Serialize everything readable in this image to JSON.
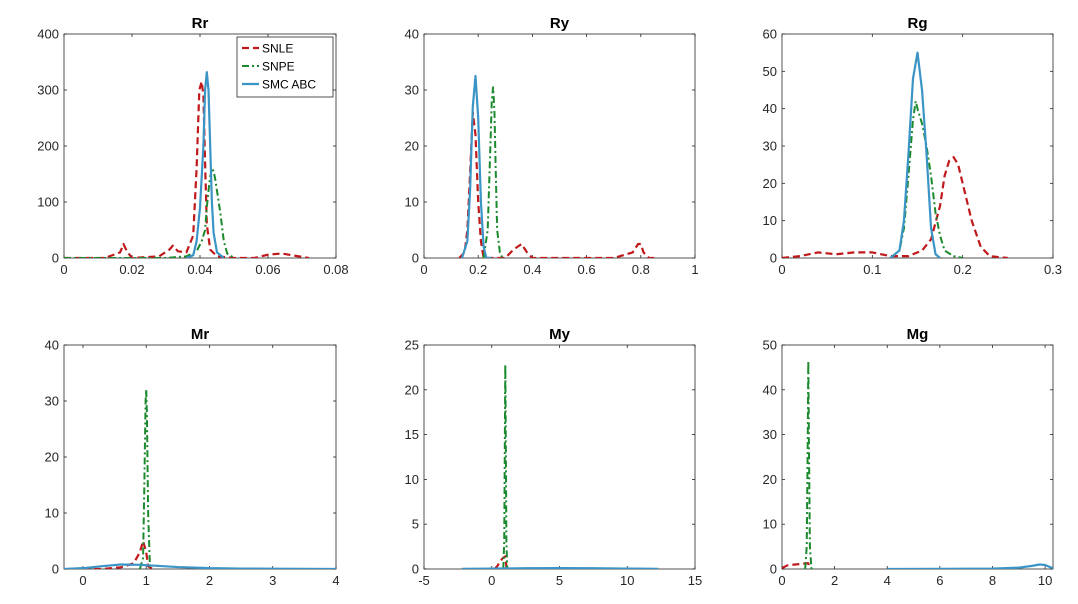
{
  "colors": {
    "SNLE": "#c0181b",
    "SNPE": "#1b8a2e",
    "SMC ABC": "#3a95c6",
    "axis": "#262626",
    "background": "#ffffff"
  },
  "legend": {
    "placement": "top-right",
    "entries": [
      {
        "name": "SNLE",
        "style": "dashed"
      },
      {
        "name": "SNPE",
        "style": "dash-dot"
      },
      {
        "name": "SMC ABC",
        "style": "solid"
      }
    ]
  },
  "chart_data": [
    {
      "type": "line",
      "title": "Rr",
      "xlim": [
        0,
        0.08
      ],
      "ylim": [
        0,
        400
      ],
      "xticks": [
        0,
        0.02,
        0.04,
        0.06,
        0.08
      ],
      "xtick_labels": [
        "0",
        "0.02",
        "0.04",
        "0.06",
        "0.08"
      ],
      "yticks": [
        0,
        100,
        200,
        300,
        400
      ],
      "ytick_labels": [
        "0",
        "100",
        "200",
        "300",
        "400"
      ],
      "legend": true,
      "series": [
        {
          "name": "SNLE",
          "x": [
            0,
            0.012,
            0.0165,
            0.0175,
            0.0185,
            0.02,
            0.028,
            0.031,
            0.032,
            0.0335,
            0.036,
            0.038,
            0.039,
            0.0398,
            0.0405,
            0.041,
            0.0415,
            0.042,
            0.043,
            0.045,
            0.05,
            0.056,
            0.06,
            0.064,
            0.068,
            0.072
          ],
          "y": [
            0,
            0,
            10,
            25,
            12,
            0,
            3,
            15,
            22,
            12,
            10,
            40,
            160,
            300,
            315,
            290,
            170,
            60,
            15,
            3,
            0,
            0,
            6,
            8,
            4,
            0
          ]
        },
        {
          "name": "SNPE",
          "x": [
            0,
            0.03,
            0.036,
            0.039,
            0.0405,
            0.0415,
            0.042,
            0.0425,
            0.043,
            0.0435,
            0.044,
            0.0445,
            0.045,
            0.046,
            0.047,
            0.048,
            0.05
          ],
          "y": [
            0,
            0,
            3,
            12,
            30,
            50,
            90,
            120,
            145,
            160,
            155,
            140,
            120,
            80,
            30,
            8,
            0
          ]
        },
        {
          "name": "SMC ABC",
          "x": [
            0.036,
            0.038,
            0.039,
            0.04,
            0.041,
            0.0415,
            0.042,
            0.0425,
            0.043,
            0.0435,
            0.044,
            0.045,
            0.047
          ],
          "y": [
            0,
            5,
            30,
            90,
            200,
            300,
            332,
            300,
            200,
            100,
            45,
            10,
            0
          ]
        }
      ]
    },
    {
      "type": "line",
      "title": "Ry",
      "xlim": [
        0,
        1
      ],
      "ylim": [
        0,
        40
      ],
      "xticks": [
        0,
        0.2,
        0.4,
        0.6,
        0.8,
        1
      ],
      "xtick_labels": [
        "0",
        "0.2",
        "0.4",
        "0.6",
        "0.8",
        "1"
      ],
      "yticks": [
        0,
        10,
        20,
        30,
        40
      ],
      "ytick_labels": [
        "0",
        "10",
        "20",
        "30",
        "40"
      ],
      "legend": false,
      "series": [
        {
          "name": "SNLE",
          "x": [
            0.13,
            0.15,
            0.16,
            0.17,
            0.18,
            0.19,
            0.2,
            0.21,
            0.22,
            0.25,
            0.3,
            0.33,
            0.36,
            0.38,
            0.4,
            0.5,
            0.6,
            0.7,
            0.77,
            0.79,
            0.8,
            0.81,
            0.83,
            0.86
          ],
          "y": [
            0,
            1,
            5,
            15,
            26,
            22,
            10,
            3,
            0,
            0,
            0,
            1.5,
            2.5,
            1,
            0,
            0,
            0,
            0,
            1,
            2.5,
            2.5,
            1,
            0,
            0
          ]
        },
        {
          "name": "SNPE",
          "x": [
            0.22,
            0.235,
            0.245,
            0.25,
            0.255,
            0.26,
            0.265,
            0.27,
            0.28,
            0.29
          ],
          "y": [
            0,
            5,
            20,
            28,
            30.5,
            26,
            15,
            5,
            1,
            0
          ]
        },
        {
          "name": "SMC ABC",
          "x": [
            0.14,
            0.16,
            0.17,
            0.18,
            0.19,
            0.2,
            0.21,
            0.22,
            0.23,
            0.25
          ],
          "y": [
            0,
            3,
            12,
            27,
            32.5,
            25,
            10,
            2,
            0,
            0
          ]
        }
      ]
    },
    {
      "type": "line",
      "title": "Rg",
      "xlim": [
        0,
        0.3
      ],
      "ylim": [
        0,
        60
      ],
      "xticks": [
        0,
        0.1,
        0.2,
        0.3
      ],
      "xtick_labels": [
        "0",
        "0.1",
        "0.2",
        "0.3"
      ],
      "yticks": [
        0,
        10,
        20,
        30,
        40,
        50,
        60
      ],
      "ytick_labels": [
        "0",
        "10",
        "20",
        "30",
        "40",
        "50",
        "60"
      ],
      "legend": false,
      "series": [
        {
          "name": "SNLE",
          "x": [
            0,
            0.02,
            0.04,
            0.06,
            0.08,
            0.1,
            0.12,
            0.14,
            0.155,
            0.165,
            0.175,
            0.18,
            0.185,
            0.19,
            0.195,
            0.2,
            0.21,
            0.22,
            0.23,
            0.25
          ],
          "y": [
            0,
            0.5,
            1.5,
            1,
            1.5,
            1.5,
            0.5,
            0.5,
            2,
            5,
            14,
            22,
            26,
            27,
            25,
            20,
            10,
            3,
            0.5,
            0
          ]
        },
        {
          "name": "SNPE",
          "x": [
            0.12,
            0.13,
            0.135,
            0.14,
            0.145,
            0.148,
            0.15,
            0.155,
            0.16,
            0.165,
            0.17,
            0.175,
            0.18,
            0.19,
            0.2
          ],
          "y": [
            0,
            2,
            8,
            22,
            37,
            42,
            40,
            36,
            30,
            22,
            12,
            6,
            2,
            0.5,
            0
          ]
        },
        {
          "name": "SMC ABC",
          "x": [
            0.12,
            0.13,
            0.135,
            0.14,
            0.145,
            0.15,
            0.155,
            0.16,
            0.165,
            0.17,
            0.175
          ],
          "y": [
            0,
            2,
            10,
            28,
            48,
            55,
            45,
            28,
            8,
            1,
            0
          ]
        }
      ]
    },
    {
      "type": "line",
      "title": "Mr",
      "xlim": [
        -0.3,
        4
      ],
      "ylim": [
        0,
        40
      ],
      "xticks": [
        0,
        1,
        2,
        3,
        4
      ],
      "xtick_labels": [
        "0",
        "1",
        "2",
        "3",
        "4"
      ],
      "yticks": [
        0,
        10,
        20,
        30,
        40
      ],
      "ytick_labels": [
        "0",
        "10",
        "20",
        "30",
        "40"
      ],
      "legend": false,
      "series": [
        {
          "name": "SNLE",
          "x": [
            0,
            0.3,
            0.6,
            0.8,
            0.9,
            0.95,
            1.0,
            1.03,
            1.1
          ],
          "y": [
            0,
            0,
            0.3,
            1,
            3,
            5,
            3,
            0.5,
            0
          ]
        },
        {
          "name": "SNPE",
          "x": [
            0.9,
            0.95,
            0.97,
            0.99,
            1.0,
            1.01,
            1.03,
            1.06
          ],
          "y": [
            0,
            2,
            15,
            30,
            32,
            28,
            10,
            0
          ]
        },
        {
          "name": "SMC ABC",
          "x": [
            -0.3,
            0.0,
            0.3,
            0.6,
            0.9,
            1.2,
            1.5,
            2.0,
            2.5,
            3.0,
            3.5,
            4.0
          ],
          "y": [
            0,
            0.15,
            0.5,
            0.8,
            0.75,
            0.55,
            0.35,
            0.15,
            0.08,
            0.04,
            0.02,
            0
          ]
        }
      ]
    },
    {
      "type": "line",
      "title": "My",
      "xlim": [
        -5,
        15
      ],
      "ylim": [
        0,
        25
      ],
      "xticks": [
        -5,
        0,
        5,
        10,
        15
      ],
      "xtick_labels": [
        "-5",
        "0",
        "5",
        "10",
        "15"
      ],
      "yticks": [
        0,
        5,
        10,
        15,
        20,
        25
      ],
      "ytick_labels": [
        "0",
        "5",
        "10",
        "15",
        "20",
        "25"
      ],
      "legend": false,
      "series": [
        {
          "name": "SNLE",
          "x": [
            0.2,
            0.4,
            0.6,
            0.8,
            1.0,
            1.1
          ],
          "y": [
            0,
            0.3,
            0.8,
            1.2,
            1.4,
            0
          ]
        },
        {
          "name": "SNPE",
          "x": [
            0.85,
            0.92,
            0.97,
            1.0,
            1.03,
            1.08,
            1.15
          ],
          "y": [
            0,
            3,
            15,
            22.8,
            16,
            3,
            0
          ]
        },
        {
          "name": "SMC ABC",
          "x": [
            -2.2,
            0,
            2.5,
            5,
            7.5,
            10,
            12.3
          ],
          "y": [
            0.02,
            0.05,
            0.08,
            0.1,
            0.08,
            0.05,
            0.02
          ]
        }
      ]
    },
    {
      "type": "line",
      "title": "Mg",
      "xlim": [
        0,
        10.3
      ],
      "ylim": [
        0,
        50
      ],
      "xticks": [
        0,
        2,
        4,
        6,
        8,
        10
      ],
      "xtick_labels": [
        "0",
        "2",
        "4",
        "6",
        "8",
        "10"
      ],
      "yticks": [
        0,
        10,
        20,
        30,
        40,
        50
      ],
      "ytick_labels": [
        "0",
        "10",
        "20",
        "30",
        "40",
        "50"
      ],
      "legend": false,
      "series": [
        {
          "name": "SNLE",
          "x": [
            0,
            0.2,
            0.5,
            0.8,
            1.0,
            1.05
          ],
          "y": [
            0.2,
            0.8,
            1.0,
            1.2,
            1.3,
            0
          ]
        },
        {
          "name": "SNPE",
          "x": [
            0.88,
            0.94,
            0.98,
            1.0,
            1.02,
            1.06,
            1.12
          ],
          "y": [
            0,
            5,
            30,
            46.5,
            30,
            5,
            0
          ]
        },
        {
          "name": "SMC ABC",
          "x": [
            4.0,
            6.0,
            8.0,
            9.0,
            9.5,
            9.8,
            10.0,
            10.2,
            10.3
          ],
          "y": [
            0,
            0.02,
            0.08,
            0.3,
            0.7,
            1.0,
            0.9,
            0.4,
            0.2
          ]
        }
      ]
    }
  ]
}
